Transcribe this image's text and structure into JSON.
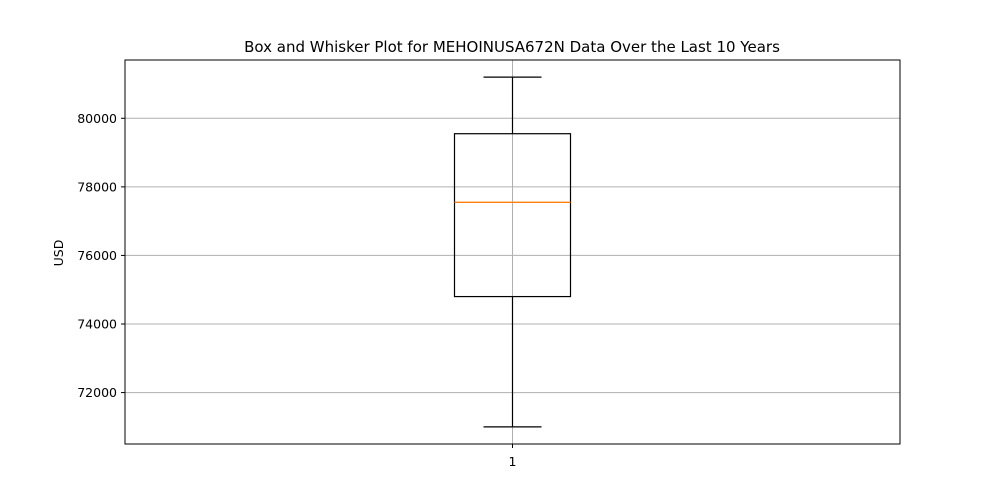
{
  "chart_data": {
    "type": "box",
    "title": "Box and Whisker Plot for MEHOINUSA672N Data Over the Last 10 Years",
    "xlabel": "",
    "ylabel": "USD",
    "categories": [
      "1"
    ],
    "ylim": [
      70500,
      81700
    ],
    "yticks": [
      72000,
      74000,
      76000,
      78000,
      80000
    ],
    "ytick_labels": [
      "72000",
      "74000",
      "76000",
      "78000",
      "80000"
    ],
    "grid": true,
    "boxes": [
      {
        "category": "1",
        "whisker_low": 71000,
        "q1": 74800,
        "median": 77550,
        "q3": 79550,
        "whisker_high": 81200
      }
    ],
    "colors": {
      "box": "#000000",
      "median": "#ff7f0e",
      "grid": "#b0b0b0"
    }
  }
}
